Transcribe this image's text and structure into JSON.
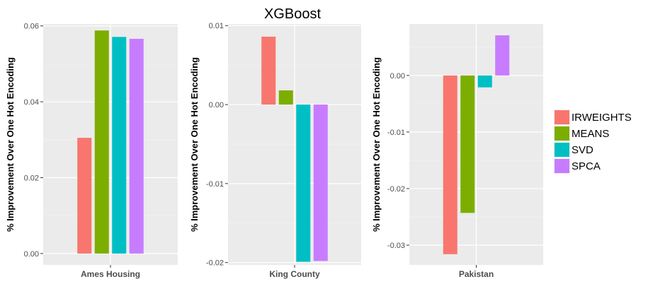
{
  "chart_data": {
    "type": "bar",
    "title": "XGBoost",
    "legend": {
      "placement": "right",
      "entries": [
        {
          "name": "IRWEIGHTS",
          "color": "#F8766D"
        },
        {
          "name": "MEANS",
          "color": "#7CAE00"
        },
        {
          "name": "SVD",
          "color": "#00BFC4"
        },
        {
          "name": "SPCA",
          "color": "#C77CFF"
        }
      ]
    },
    "grid": true,
    "panels": [
      {
        "category": "Ames Housing",
        "ylabel": "% Improvement Over One Hot Encoding",
        "ylim": [
          -0.003,
          0.0605
        ],
        "ticks": [
          {
            "value": 0.0,
            "label": "0.00"
          },
          {
            "value": 0.02,
            "label": "0.02"
          },
          {
            "value": 0.04,
            "label": "0.04"
          },
          {
            "value": 0.06,
            "label": "0.06"
          }
        ],
        "values": [
          0.0305,
          0.0588,
          0.0571,
          0.0566
        ]
      },
      {
        "category": "King County",
        "ylabel": "% Improvement Over One Hot Encoding",
        "ylim": [
          -0.0203,
          0.0102
        ],
        "ticks": [
          {
            "value": 0.01,
            "label": "0.01"
          },
          {
            "value": 0.0,
            "label": "0.00"
          },
          {
            "value": -0.01,
            "label": "-0.01"
          },
          {
            "value": -0.02,
            "label": "-0.02"
          }
        ],
        "values": [
          0.0086,
          0.0018,
          -0.0199,
          -0.0198
        ]
      },
      {
        "category": "Pakistan",
        "ylabel": "% Improvement Over One Hot Encoding",
        "ylim": [
          -0.0335,
          0.0091
        ],
        "ticks": [
          {
            "value": 0.0,
            "label": "0.00"
          },
          {
            "value": -0.01,
            "label": "-0.01"
          },
          {
            "value": -0.02,
            "label": "-0.02"
          },
          {
            "value": -0.03,
            "label": "-0.03"
          }
        ],
        "values": [
          -0.0316,
          -0.0243,
          -0.0021,
          0.0071
        ]
      }
    ]
  }
}
